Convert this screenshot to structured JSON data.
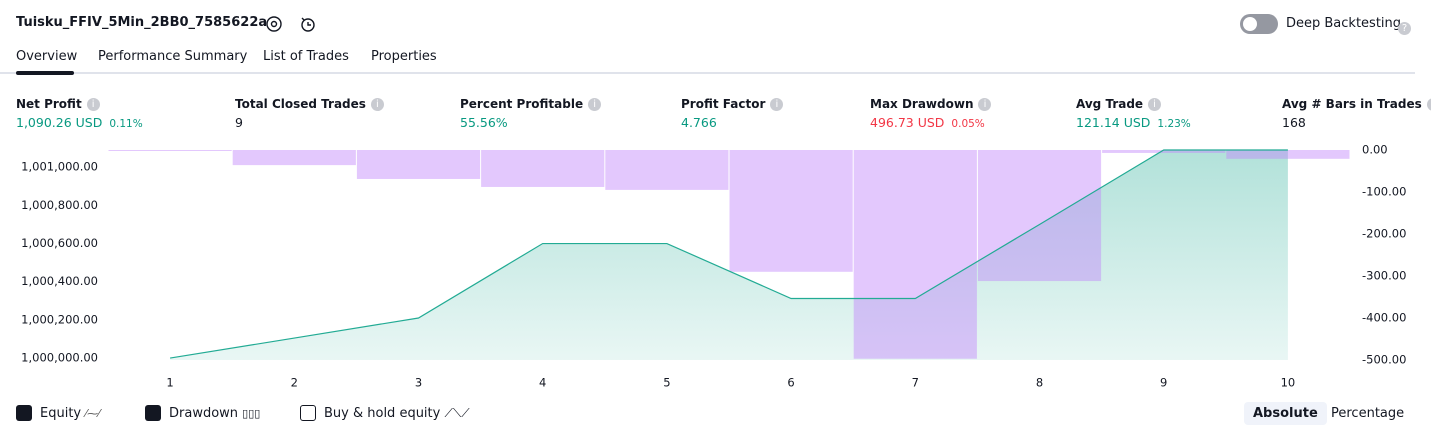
{
  "header": {
    "title": "Tuisku_FFIV_5Min_2BB0_7585622a",
    "deep_backtesting": "Deep Backtesting"
  },
  "tabs": [
    "Overview",
    "Performance Summary",
    "List of Trades",
    "Properties"
  ],
  "metrics": [
    {
      "label": "Net Profit",
      "value": "1,090.26 USD",
      "change": "0.11%",
      "color": "#089981"
    },
    {
      "label": "Total Closed Trades",
      "value": "9",
      "color": "#131722"
    },
    {
      "label": "Percent Profitable",
      "value": "55.56%",
      "color": "#089981"
    },
    {
      "label": "Profit Factor",
      "value": "4.766",
      "color": "#089981"
    },
    {
      "label": "Max Drawdown",
      "value": "496.73 USD",
      "change": "0.05%",
      "color": "#f23645"
    },
    {
      "label": "Avg Trade",
      "value": "121.14 USD",
      "change": "1.23%",
      "color": "#089981"
    },
    {
      "label": "Avg # Bars in Trades",
      "value": "168",
      "color": "#131722"
    }
  ],
  "chart_data": {
    "type": "area_bar",
    "categories": [
      "1",
      "2",
      "3",
      "4",
      "5",
      "6",
      "7",
      "8",
      "9",
      "10"
    ],
    "series": [
      {
        "name": "Equity",
        "type": "area",
        "color": "#22ab94",
        "values": [
          1000000,
          1000105,
          1000210,
          1000600,
          1000600,
          1000312,
          1000312,
          1000700,
          1001090,
          1001090
        ]
      },
      {
        "name": "Drawdown",
        "type": "bar",
        "axis": "y2",
        "color": "#c184fb",
        "values": [
          -1,
          -36,
          -69,
          -88,
          -95,
          -290,
          -497,
          -312,
          -7,
          -21
        ]
      }
    ],
    "ylim": [
      999990,
      1001090
    ],
    "yticks": [
      {
        "value": 1000000,
        "label": "1,000,000.00"
      },
      {
        "value": 1000200,
        "label": "1,000,200.00"
      },
      {
        "value": 1000400,
        "label": "1,000,400.00"
      },
      {
        "value": 1000600,
        "label": "1,000,600.00"
      },
      {
        "value": 1000800,
        "label": "1,000,800.00"
      },
      {
        "value": 1001000,
        "label": "1,001,000.00"
      }
    ],
    "y2lim": [
      -500,
      0
    ],
    "y2ticks": [
      {
        "value": 0,
        "label": "0.00"
      },
      {
        "value": -100,
        "label": "-100.00"
      },
      {
        "value": -200,
        "label": "-200.00"
      },
      {
        "value": -300,
        "label": "-300.00"
      },
      {
        "value": -400,
        "label": "-400.00"
      },
      {
        "value": -500,
        "label": "-500.00"
      }
    ]
  },
  "controls": {
    "buy_hold": "Buy & hold equity",
    "absolute": "Absolute",
    "percentage": "Percentage"
  }
}
